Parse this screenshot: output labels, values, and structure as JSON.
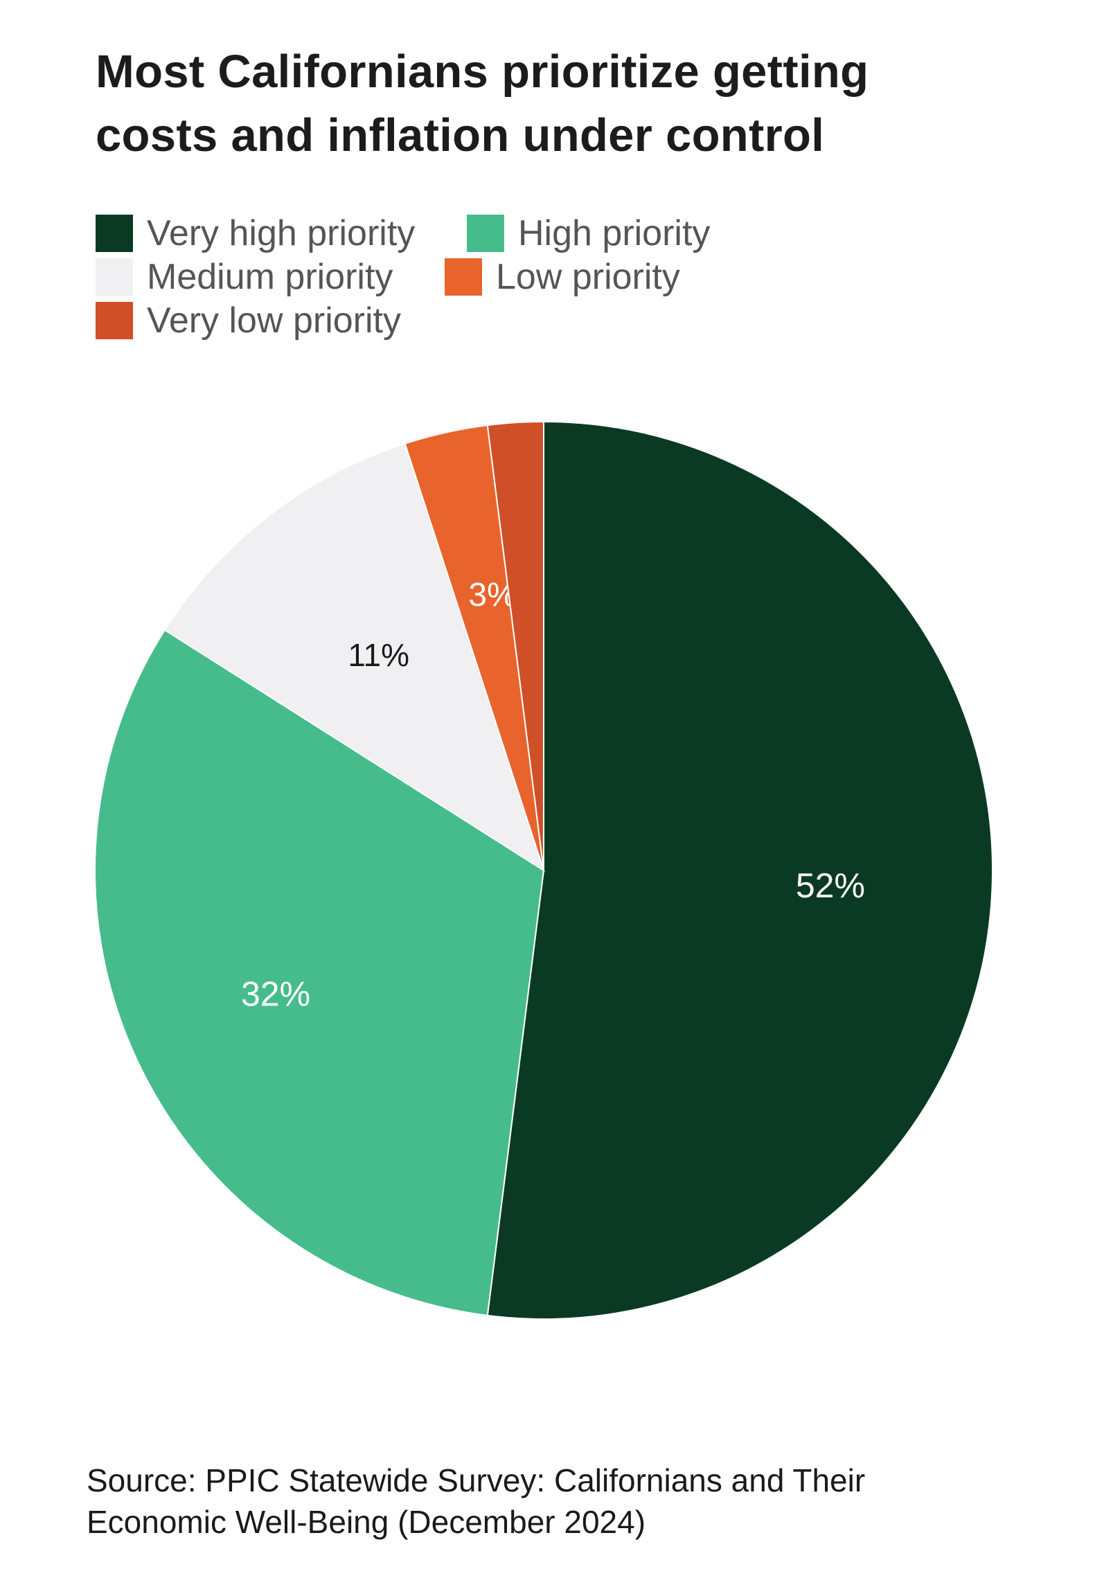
{
  "title": {
    "line1": "Most Californians prioritize getting",
    "line2": "costs and inflation under control"
  },
  "source": {
    "line1": "Source: PPIC Statewide Survey: Californians and Their",
    "line2": "Economic Well-Being (December 2024)"
  },
  "chart_data": {
    "type": "pie",
    "title": "Most Californians prioritize getting costs and inflation under control",
    "categories": [
      "Very high priority",
      "High priority",
      "Medium priority",
      "Low priority",
      "Very low priority"
    ],
    "values": [
      52,
      32,
      11,
      3,
      2
    ],
    "labels": [
      "52%",
      "32%",
      "11%",
      "3%",
      ""
    ],
    "colors": [
      "#0b3a24",
      "#46bc8c",
      "#f0f0f2",
      "#e8642c",
      "#cf4f28"
    ],
    "label_colors": [
      "#ffffff",
      "#ffffff",
      "#1a1a1a",
      "#ffffff",
      "#ffffff"
    ],
    "start_angle_deg": 0,
    "direction": "clockwise",
    "legend_position": "top-left"
  }
}
